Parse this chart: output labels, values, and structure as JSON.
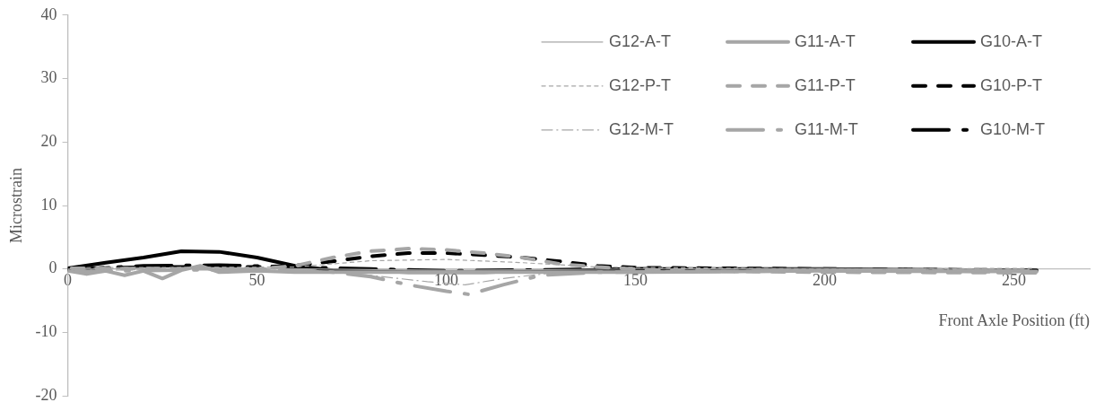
{
  "chart_data": {
    "type": "line",
    "xlabel": "Front Axle Position (ft)",
    "ylabel": "Microstrain",
    "xlim": [
      0,
      270
    ],
    "xticks": [
      0,
      50,
      100,
      150,
      200,
      250
    ],
    "ylim": [
      -20,
      40
    ],
    "yticks": [
      -20,
      -10,
      0,
      10,
      20,
      30,
      40
    ],
    "grid": false,
    "legend": "top right",
    "marker": "none",
    "series": [
      {
        "name": "G12-A-T",
        "color": "#a6a6a6",
        "line_style": "solid",
        "x": [
          0,
          50,
          100,
          150,
          200,
          254
        ],
        "values": [
          0,
          0.1,
          -0.2,
          0,
          0.1,
          -0.1
        ]
      },
      {
        "name": "G12-P-T",
        "color": "#a6a6a6",
        "line_style": "dashed",
        "x": [
          1,
          60,
          80,
          100,
          120,
          140,
          200,
          255
        ],
        "values": [
          0.2,
          0.3,
          1.3,
          1.5,
          1,
          0.3,
          0,
          0.1
        ]
      },
      {
        "name": "G12-M-T",
        "color": "#a6a6a6",
        "line_style": "dashdot",
        "x": [
          2,
          60,
          80,
          95,
          105,
          115,
          130,
          200,
          253
        ],
        "values": [
          -0.2,
          0,
          -1,
          -2,
          -2.5,
          -1.5,
          -0.5,
          -0.2,
          -0.1
        ]
      },
      {
        "name": "G11-A-T",
        "color": "#a6a6a6",
        "line_style": "solid",
        "x": [
          0,
          5,
          10,
          15,
          20,
          25,
          30,
          35,
          40,
          50,
          60,
          80,
          100,
          150,
          200,
          256
        ],
        "values": [
          -0.3,
          -0.8,
          -0.3,
          -1,
          -0.3,
          -1.5,
          -0.2,
          0.5,
          -0.5,
          -0.3,
          -0.5,
          -0.5,
          -0.5,
          -0.5,
          -0.3,
          -0.4
        ]
      },
      {
        "name": "G11-P-T",
        "color": "#a6a6a6",
        "line_style": "dashed",
        "x": [
          1,
          50,
          60,
          70,
          80,
          90,
          100,
          110,
          120,
          130,
          140,
          160,
          200,
          257
        ],
        "values": [
          0.1,
          0,
          0.5,
          1.8,
          2.8,
          3.2,
          3,
          2.5,
          1.8,
          0.8,
          0.3,
          -0.3,
          -0.5,
          -0.6
        ]
      },
      {
        "name": "G11-M-T",
        "color": "#a6a6a6",
        "line_style": "dashdot",
        "x": [
          2,
          50,
          60,
          70,
          80,
          90,
          100,
          106,
          115,
          125,
          140,
          200,
          252
        ],
        "values": [
          -0.4,
          0,
          -0.2,
          -0.5,
          -1.2,
          -2.5,
          -3.5,
          -4,
          -2.5,
          -1,
          -0.5,
          -0.3,
          -0.2
        ]
      },
      {
        "name": "G10-A-T",
        "color": "#000000",
        "line_style": "solid",
        "x": [
          0,
          10,
          20,
          30,
          40,
          50,
          60,
          70,
          90,
          110,
          130,
          150,
          200,
          255
        ],
        "values": [
          0.1,
          1,
          1.8,
          2.8,
          2.7,
          1.8,
          0.5,
          -0.2,
          -0.5,
          -0.5,
          -0.3,
          0,
          0,
          -0.3
        ]
      },
      {
        "name": "G10-P-T",
        "color": "#000000",
        "line_style": "dashed",
        "x": [
          1,
          20,
          50,
          60,
          70,
          80,
          90,
          100,
          110,
          120,
          130,
          140,
          150,
          200,
          256
        ],
        "values": [
          0,
          0.3,
          0.3,
          0.5,
          1.2,
          2,
          2.5,
          2.5,
          2.2,
          1.8,
          1.2,
          0.5,
          0.2,
          0,
          -0.2
        ]
      },
      {
        "name": "G10-M-T",
        "color": "#000000",
        "line_style": "dashdot",
        "x": [
          0,
          20,
          40,
          60,
          80,
          100,
          150,
          200,
          254
        ],
        "values": [
          -0.1,
          0.5,
          0.6,
          0.3,
          0,
          -0.3,
          0,
          -0.2,
          -0.4
        ]
      }
    ]
  }
}
